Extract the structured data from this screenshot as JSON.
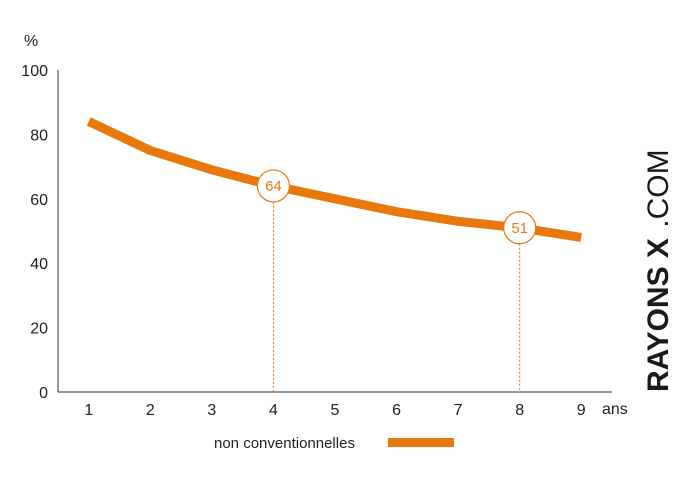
{
  "chart_data": {
    "type": "line",
    "x": [
      1,
      2,
      3,
      4,
      5,
      6,
      7,
      8,
      9
    ],
    "series": [
      {
        "name": "non conventionnelles",
        "values": [
          84,
          75,
          69,
          64,
          60,
          56,
          53,
          51,
          48
        ]
      }
    ],
    "xlabel": "ans",
    "ylabel": "%",
    "xlim": [
      0.5,
      9.5
    ],
    "ylim": [
      0,
      100
    ],
    "yticks": [
      0,
      20,
      40,
      60,
      80,
      100
    ],
    "xticks": [
      1,
      2,
      3,
      4,
      5,
      6,
      7,
      8,
      9
    ],
    "grid": false,
    "legend_position": "bottom",
    "annotations": [
      {
        "x": 4,
        "y": 64,
        "label": "64"
      },
      {
        "x": 8,
        "y": 51,
        "label": "51"
      }
    ],
    "colors": {
      "series": "#e8770c",
      "axis": "#333333",
      "guide": "#e8770c"
    }
  },
  "watermark": {
    "brand": "RAYONS X",
    "suffix": ".COM"
  }
}
